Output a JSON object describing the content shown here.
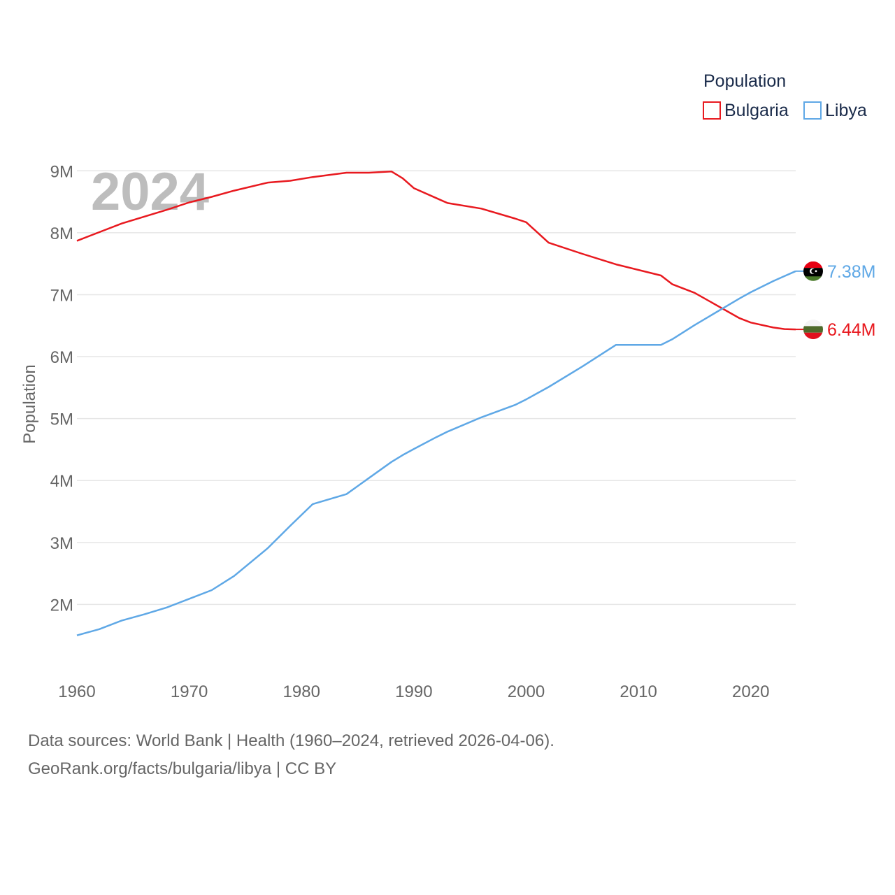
{
  "chart_data": {
    "type": "line",
    "title": "",
    "year_label": "2024",
    "xlabel": "",
    "ylabel": "Population",
    "xlim": [
      1960,
      2024
    ],
    "ylim": [
      1000000,
      9500000
    ],
    "x_ticks": [
      1960,
      1970,
      1980,
      1990,
      2000,
      2010,
      2020
    ],
    "y_ticks": [
      {
        "value": 2000000,
        "label": "2M"
      },
      {
        "value": 3000000,
        "label": "3M"
      },
      {
        "value": 4000000,
        "label": "4M"
      },
      {
        "value": 5000000,
        "label": "5M"
      },
      {
        "value": 6000000,
        "label": "6M"
      },
      {
        "value": 7000000,
        "label": "7M"
      },
      {
        "value": 8000000,
        "label": "8M"
      },
      {
        "value": 9000000,
        "label": "9M"
      }
    ],
    "legend": {
      "title": "Population",
      "placement": "top-right",
      "entries": [
        "Bulgaria",
        "Libya"
      ]
    },
    "x": [
      1960,
      1962,
      1964,
      1966,
      1968,
      1970,
      1972,
      1974,
      1977,
      1979,
      1981,
      1984,
      1986,
      1988,
      1989,
      1990,
      1992,
      1993,
      1996,
      1999,
      2000,
      2002,
      2005,
      2008,
      2012,
      2013,
      2015,
      2019,
      2020,
      2022,
      2023,
      2024
    ],
    "series": [
      {
        "name": "Bulgaria",
        "color": "#e8191f",
        "end_label": "6.44M",
        "flag": "bulgaria-flag",
        "values": [
          7870000,
          8010000,
          8150000,
          8260000,
          8370000,
          8490000,
          8580000,
          8680000,
          8810000,
          8840000,
          8900000,
          8970000,
          8970000,
          8990000,
          8880000,
          8720000,
          8560000,
          8480000,
          8390000,
          8230000,
          8170000,
          7840000,
          7660000,
          7490000,
          7310000,
          7170000,
          7030000,
          6620000,
          6550000,
          6470000,
          6445000,
          6440000
        ]
      },
      {
        "name": "Libya",
        "color": "#5fa8e6",
        "end_label": "7.38M",
        "flag": "libya-flag",
        "values": [
          1500000,
          1600000,
          1740000,
          1840000,
          1950000,
          2090000,
          2230000,
          2460000,
          2910000,
          3270000,
          3620000,
          3780000,
          4040000,
          4300000,
          4410000,
          4510000,
          4700000,
          4790000,
          5020000,
          5220000,
          5310000,
          5510000,
          5840000,
          6190000,
          6190000,
          6280000,
          6510000,
          6940000,
          7040000,
          7220000,
          7300000,
          7380000
        ]
      }
    ]
  },
  "source": {
    "line1": "Data sources: World Bank | Health (1960–2024, retrieved 2026-04-06).",
    "line2": "GeoRank.org/facts/bulgaria/libya | CC BY"
  }
}
